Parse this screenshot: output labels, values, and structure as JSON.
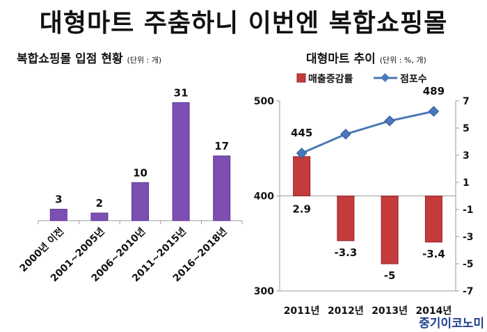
{
  "title": "대형마트 주춤하니 이번엔 복합쇼핑몰",
  "source": "중기이코노미",
  "chart_data": [
    {
      "type": "bar",
      "title": "복합쇼핑몰 입점 현황",
      "unit_note": "(단위 : 개)",
      "categories": [
        "2000년 이전",
        "2001~2005년",
        "2006~2010년",
        "2011~2015년",
        "2016~2018년"
      ],
      "values": [
        3,
        2,
        10,
        31,
        17
      ],
      "data_labels": [
        "3",
        "2",
        "10",
        "31",
        "17"
      ],
      "colors": {
        "bar": "#7d4fb3"
      }
    },
    {
      "type": "bar+line",
      "title": "대형마트 추이",
      "unit_note": "(단위 : %, 개)",
      "categories": [
        "2011년",
        "2012년",
        "2013년",
        "2014년"
      ],
      "legend": [
        "매출증감률",
        "점포수"
      ],
      "legend_position": "top",
      "series": [
        {
          "name": "매출증감률",
          "type": "bar",
          "axis": "right",
          "values": [
            2.9,
            -3.3,
            -5,
            -3.4
          ],
          "data_labels": [
            "2.9",
            "-3.3",
            "-5",
            "-3.4"
          ],
          "color": "#c43b3b"
        },
        {
          "name": "점포수",
          "type": "line",
          "axis": "left",
          "values": [
            445,
            465,
            479,
            489
          ],
          "data_labels": [
            "445",
            "",
            "",
            "489"
          ],
          "color": "#4a78b8"
        }
      ],
      "left_axis": {
        "range": [
          300,
          500
        ],
        "ticks": [
          "300",
          "400",
          "500"
        ]
      },
      "right_axis": {
        "range": [
          -7,
          7
        ],
        "ticks": [
          "7",
          "5",
          "3",
          "1",
          "-1",
          "-3",
          "-5",
          "-7"
        ]
      }
    }
  ]
}
